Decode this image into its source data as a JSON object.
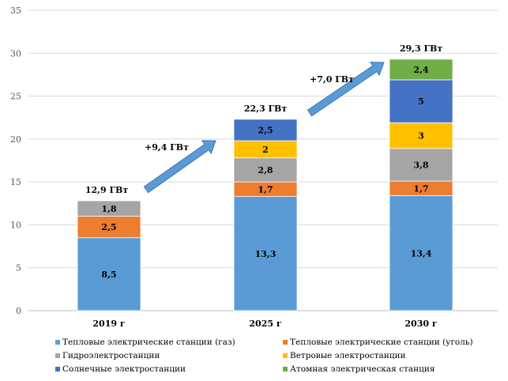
{
  "chart_data": {
    "type": "bar",
    "stacked": true,
    "categories": [
      "2019 г",
      "2025 г",
      "2030 г"
    ],
    "ylim": [
      0,
      35
    ],
    "yticks": [
      "0",
      "5",
      "10",
      "15",
      "20",
      "25",
      "30",
      "35"
    ],
    "series": [
      {
        "name": "Тепловые электрические станции (газ)",
        "color": "#5B9BD5",
        "values": [
          8.5,
          13.3,
          13.4
        ],
        "labels": [
          "8,5",
          "13,3",
          "13,4"
        ]
      },
      {
        "name": "Тепловые электрические станции (уголь)",
        "color": "#ED7D31",
        "values": [
          2.5,
          1.7,
          1.7
        ],
        "labels": [
          "2,5",
          "1,7",
          "1,7"
        ]
      },
      {
        "name": "Гидроэлектростанции",
        "color": "#A5A5A5",
        "values": [
          1.8,
          2.8,
          3.8
        ],
        "labels": [
          "1,8",
          "2,8",
          "3,8"
        ]
      },
      {
        "name": "Ветровые электростанции",
        "color": "#FFC000",
        "values": [
          0,
          2,
          3
        ],
        "labels": [
          "",
          "2",
          "3"
        ]
      },
      {
        "name": "Солнечные электростанции",
        "color": "#4472C4",
        "values": [
          0,
          2.5,
          5
        ],
        "labels": [
          "",
          "2,5",
          "5"
        ]
      },
      {
        "name": "Атомная электрическая станция",
        "color": "#70AD47",
        "values": [
          0,
          0,
          2.4
        ],
        "labels": [
          "",
          "",
          "2,4"
        ]
      }
    ],
    "totals": [
      "12,9 ГВт",
      "22,3 ГВт",
      "29,3 ГВт"
    ],
    "increments": [
      "+9,4 ГВт",
      "+7,0 ГВт"
    ],
    "legend_position": "bottom"
  }
}
